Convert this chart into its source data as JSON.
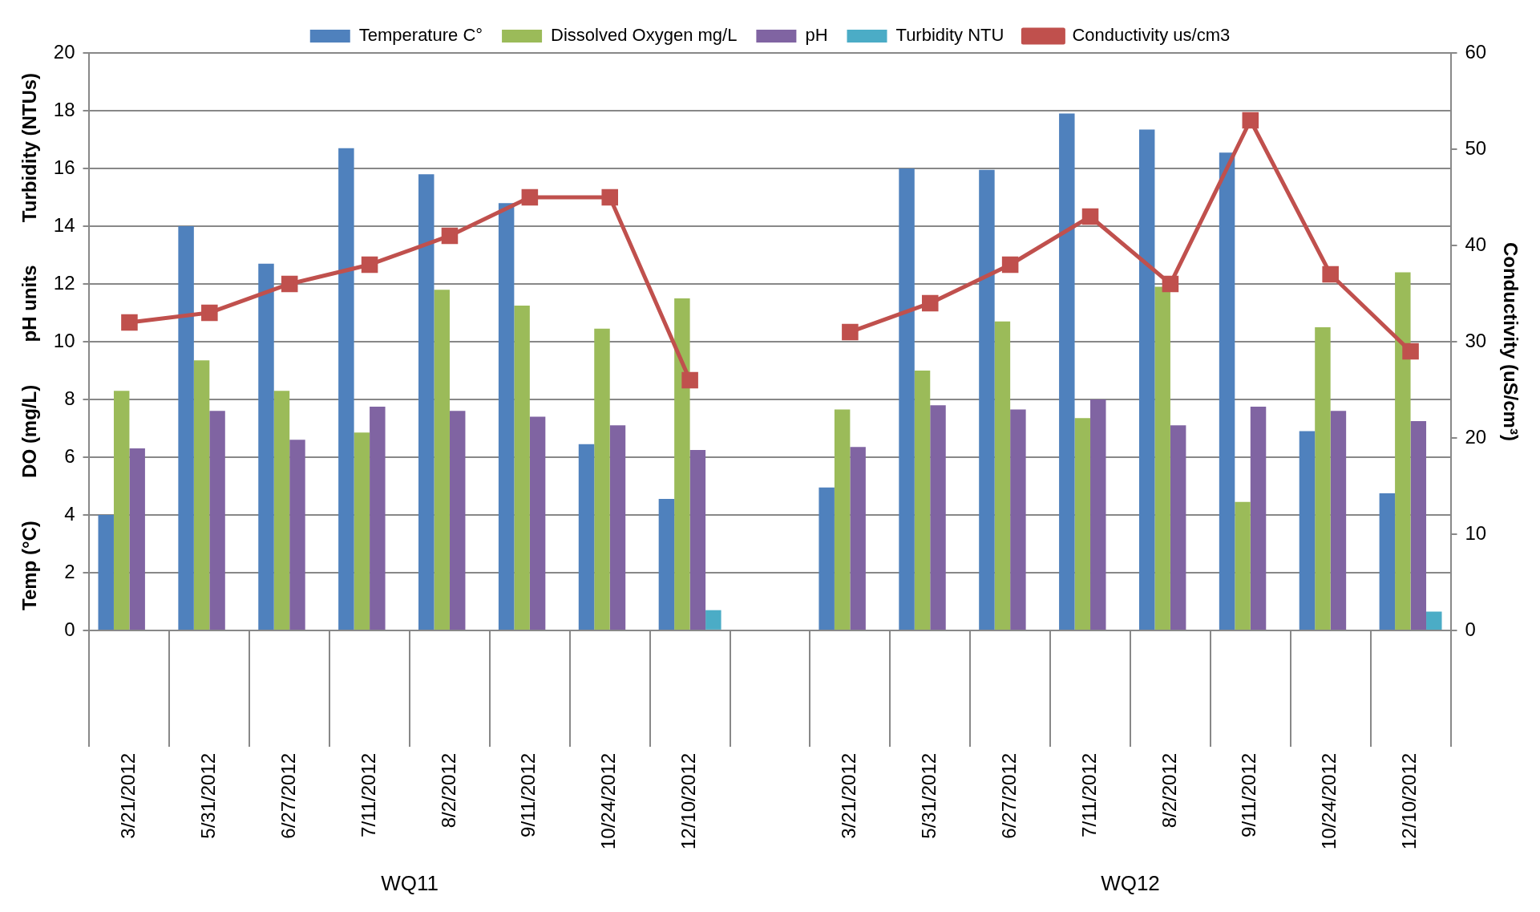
{
  "chart_data": {
    "type": "bar",
    "categories": [
      "3/21/2012",
      "5/31/2012",
      "6/27/2012",
      "7/11/2012",
      "8/2/2012",
      "9/11/2012",
      "10/24/2012",
      "12/10/2012",
      null,
      "3/21/2012",
      "5/31/2012",
      "6/27/2012",
      "7/11/2012",
      "8/2/2012",
      "9/11/2012",
      "10/24/2012",
      "12/10/2012"
    ],
    "series": [
      {
        "name": "Temperature C°",
        "color": "#4f81bd",
        "values": [
          4.0,
          14.0,
          12.7,
          16.7,
          15.8,
          14.8,
          6.45,
          4.55,
          null,
          4.95,
          16.0,
          15.95,
          17.9,
          17.35,
          16.55,
          6.9,
          4.75
        ]
      },
      {
        "name": "Dissolved Oxygen mg/L",
        "color": "#9bbb59",
        "values": [
          8.3,
          9.35,
          8.3,
          6.85,
          11.8,
          11.25,
          10.45,
          11.5,
          null,
          7.65,
          9.0,
          10.7,
          7.35,
          11.9,
          4.45,
          10.5,
          12.4
        ]
      },
      {
        "name": "pH",
        "color": "#8064a2",
        "values": [
          6.3,
          7.6,
          6.6,
          7.75,
          7.6,
          7.4,
          7.1,
          6.25,
          null,
          6.35,
          7.8,
          7.65,
          8.0,
          7.1,
          7.75,
          7.6,
          7.25
        ]
      },
      {
        "name": "Turbidity NTU",
        "color": "#4bacc6",
        "values": [
          null,
          null,
          null,
          null,
          null,
          null,
          null,
          0.7,
          null,
          null,
          null,
          null,
          null,
          null,
          null,
          null,
          0.65
        ]
      },
      {
        "name": "Conductivity us/cm3",
        "type": "line",
        "axis": "y2",
        "color": "#c0504d",
        "values": [
          32,
          33,
          36,
          38,
          41,
          45,
          45,
          26,
          null,
          31,
          34,
          38,
          43,
          36,
          53,
          37,
          29
        ]
      }
    ],
    "ylabel": "Temp (°C)        DO (mg/L)        pH units        Turbidity (NTUs)",
    "y2label": "Conductivity (uS/cm³)",
    "ylim": [
      0,
      20
    ],
    "yticks": [
      0,
      2,
      4,
      6,
      8,
      10,
      12,
      14,
      16,
      18,
      20
    ],
    "y2lim": [
      0,
      60
    ],
    "y2ticks": [
      0,
      10,
      20,
      30,
      40,
      50,
      60
    ],
    "annotations": [
      "WQ11",
      "WQ12"
    ],
    "grid": "y",
    "legend": "top",
    "marker": "square",
    "line_style": "solid"
  }
}
